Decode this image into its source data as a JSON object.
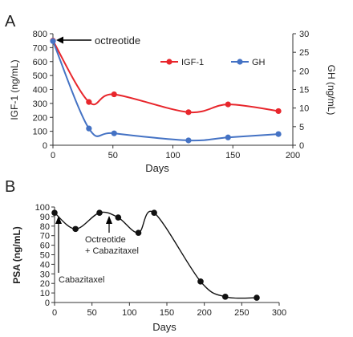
{
  "panels": [
    {
      "label": "A",
      "chart_data": {
        "type": "line",
        "xlabel": "Days",
        "ylabel_left": "IGF-1 (ng/mL)",
        "ylabel_right": "GH (ng/mL)",
        "xlim": [
          0,
          200
        ],
        "ylim_left": [
          0,
          800
        ],
        "ylim_right": [
          0,
          30
        ],
        "x_ticks": [
          0,
          50,
          100,
          150,
          200
        ],
        "y_ticks_left": [
          0,
          100,
          200,
          300,
          400,
          500,
          600,
          700,
          800
        ],
        "y_ticks_right": [
          0,
          5,
          10,
          15,
          20,
          25,
          30
        ],
        "grid": false,
        "legend_position": "top-right",
        "series": [
          {
            "name": "IGF-1",
            "axis": "left",
            "color": "#e8262c",
            "x": [
              0,
              30,
              51,
              113,
              146,
              188
            ],
            "values": [
              750,
              310,
              365,
              237,
              293,
              245
            ]
          },
          {
            "name": "GH",
            "axis": "right",
            "color": "#4472c4",
            "x": [
              0,
              30,
              51,
              113,
              146,
              188
            ],
            "values": [
              28,
              4.5,
              3.2,
              1.3,
              2.1,
              3.0
            ]
          }
        ],
        "annotations": [
          {
            "text": "octreotide",
            "x": 0,
            "y": 750
          }
        ]
      }
    },
    {
      "label": "B",
      "chart_data": {
        "type": "line",
        "xlabel": "Days",
        "ylabel": "PSA (ng/mL)",
        "xlim": [
          0,
          300
        ],
        "ylim": [
          0,
          100
        ],
        "x_ticks": [
          0,
          50,
          100,
          150,
          200,
          250,
          300
        ],
        "y_ticks": [
          0,
          10,
          20,
          30,
          40,
          50,
          60,
          70,
          80,
          90,
          100
        ],
        "grid": false,
        "series": [
          {
            "color": "#111111",
            "x": [
              0,
              28,
              60,
              85,
              112,
              133,
              195,
              228,
              270
            ],
            "values": [
              94,
              77,
              94,
              89,
              73,
              94,
              22,
              6,
              5
            ]
          }
        ],
        "annotations": [
          {
            "text": "Cabazitaxel",
            "x": 5,
            "y": 90
          },
          {
            "text": "Octreotide",
            "x": 75,
            "y": 91
          },
          {
            "text": "+ Cabazitaxel",
            "x": 75,
            "y": 91
          }
        ]
      }
    }
  ]
}
